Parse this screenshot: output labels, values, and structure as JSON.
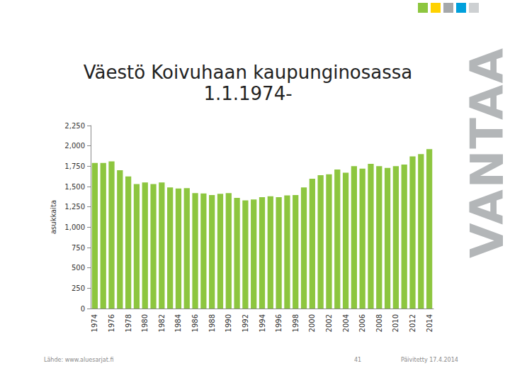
{
  "chart_data": {
    "type": "bar",
    "title": "Väestö Koivuhaan kaupunginosassa\n1.1.1974-",
    "y_label": "asukkaita",
    "categories": [
      "1974",
      null,
      "1976",
      null,
      "1978",
      null,
      "1980",
      null,
      "1982",
      null,
      "1984",
      null,
      "1986",
      null,
      "1988",
      null,
      "1990",
      null,
      "1992",
      null,
      "1994",
      null,
      "1996",
      null,
      "1998",
      null,
      "2000",
      null,
      "2002",
      null,
      "2004",
      null,
      "2006",
      null,
      "2008",
      null,
      "2010",
      null,
      "2012",
      null,
      "2014"
    ],
    "values": [
      1790,
      1790,
      1810,
      1700,
      1625,
      1530,
      1550,
      1530,
      1550,
      1490,
      1475,
      1480,
      1420,
      1415,
      1395,
      1410,
      1420,
      1360,
      1330,
      1340,
      1370,
      1380,
      1370,
      1390,
      1395,
      1490,
      1595,
      1640,
      1650,
      1710,
      1670,
      1750,
      1720,
      1780,
      1750,
      1730,
      1750,
      1770,
      1870,
      1900,
      1960
    ],
    "color": "#8dc63f",
    "ylim": [
      0,
      2250
    ],
    "yticks": [
      0,
      250,
      500,
      750,
      {
        "value": 1000,
        "label": "1,000"
      },
      {
        "value": 1250,
        "label": "1,250"
      },
      {
        "value": 1500,
        "label": "1,500"
      },
      {
        "value": 1750,
        "label": "1,750"
      },
      {
        "value": 2000,
        "label": "2,000"
      },
      {
        "value": 2250,
        "label": "2,250"
      }
    ],
    "grid": false
  },
  "slide": {
    "logo": "VANTAA",
    "source": "Lähde: www.aluesarjat.fi",
    "page": "41",
    "updated": "Päivitetty 17.4.2014"
  }
}
